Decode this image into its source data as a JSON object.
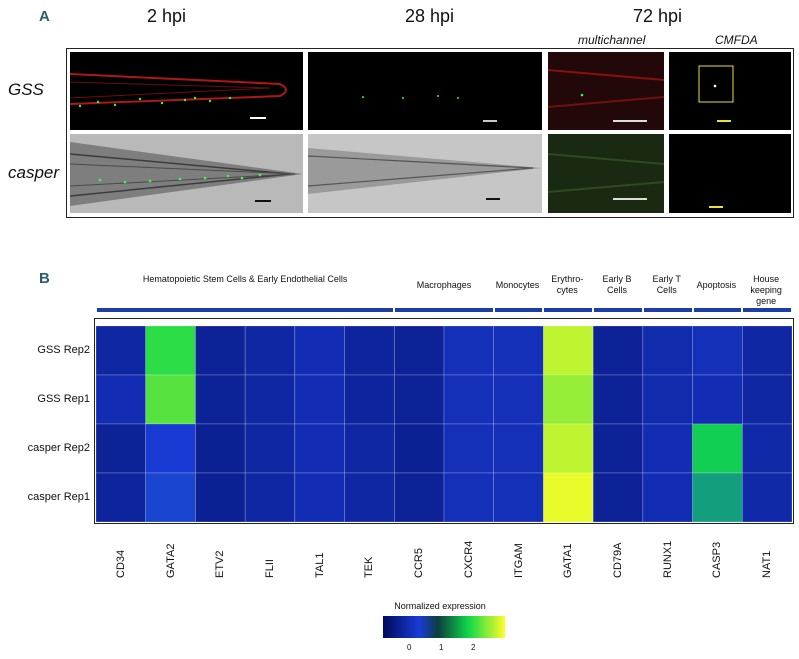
{
  "panelA": {
    "letter": "A",
    "timepoints": [
      "2 hpi",
      "28 hpi",
      "72 hpi"
    ],
    "sublabels": [
      "multichannel",
      "CMFDA"
    ],
    "rows": [
      "GSS",
      "casper"
    ]
  },
  "panelB": {
    "letter": "B",
    "colorbar_title": "Normalized expression",
    "colorbar_ticks": [
      "0",
      "1",
      "2"
    ]
  },
  "chart_data": {
    "type": "heatmap",
    "title": "",
    "group_headers": [
      {
        "label": "Hematopoietic Stem Cells & Early Endothelial Cells",
        "columns": [
          "CD34",
          "GATA2",
          "ETV2",
          "FLII",
          "TAL1",
          "TEK"
        ]
      },
      {
        "label": "Macrophages",
        "columns": [
          "CCR5",
          "CXCR4"
        ]
      },
      {
        "label": "Monocytes",
        "columns": [
          "ITGAM"
        ]
      },
      {
        "label": "Erythro-cytes",
        "columns": [
          "GATA1"
        ]
      },
      {
        "label": "Early B Cells",
        "columns": [
          "CD79A"
        ]
      },
      {
        "label": "Early T Cells",
        "columns": [
          "RUNX1"
        ]
      },
      {
        "label": "Apoptosis",
        "columns": [
          "CASP3"
        ]
      },
      {
        "label": "House keeping gene",
        "columns": [
          "NAT1"
        ]
      }
    ],
    "columns": [
      "CD34",
      "GATA2",
      "ETV2",
      "FLII",
      "TAL1",
      "TEK",
      "CCR5",
      "CXCR4",
      "ITGAM",
      "GATA1",
      "CD79A",
      "RUNX1",
      "CASP3",
      "NAT1"
    ],
    "rows": [
      "GSS Rep2",
      "GSS Rep1",
      "casper Rep2",
      "casper Rep1"
    ],
    "values": [
      [
        0.15,
        1.9,
        0.05,
        0.15,
        0.3,
        0.1,
        0.05,
        0.35,
        0.35,
        2.6,
        0.05,
        0.25,
        0.35,
        0.15
      ],
      [
        0.3,
        2.1,
        0.05,
        0.15,
        0.3,
        0.1,
        0.05,
        0.35,
        0.35,
        2.4,
        0.05,
        0.25,
        0.3,
        0.15
      ],
      [
        0.05,
        0.6,
        0.0,
        0.15,
        0.3,
        0.15,
        0.0,
        0.35,
        0.35,
        2.6,
        0.05,
        0.3,
        1.7,
        0.2
      ],
      [
        0.1,
        0.7,
        0.0,
        0.15,
        0.3,
        0.15,
        0.05,
        0.35,
        0.35,
        2.8,
        0.05,
        0.3,
        1.35,
        0.2
      ]
    ],
    "color_scale": [
      "#000a5a",
      "#1a3cd8",
      "#0fd84a",
      "#fffe28"
    ],
    "vmin": -0.5,
    "vmax": 2.9
  }
}
